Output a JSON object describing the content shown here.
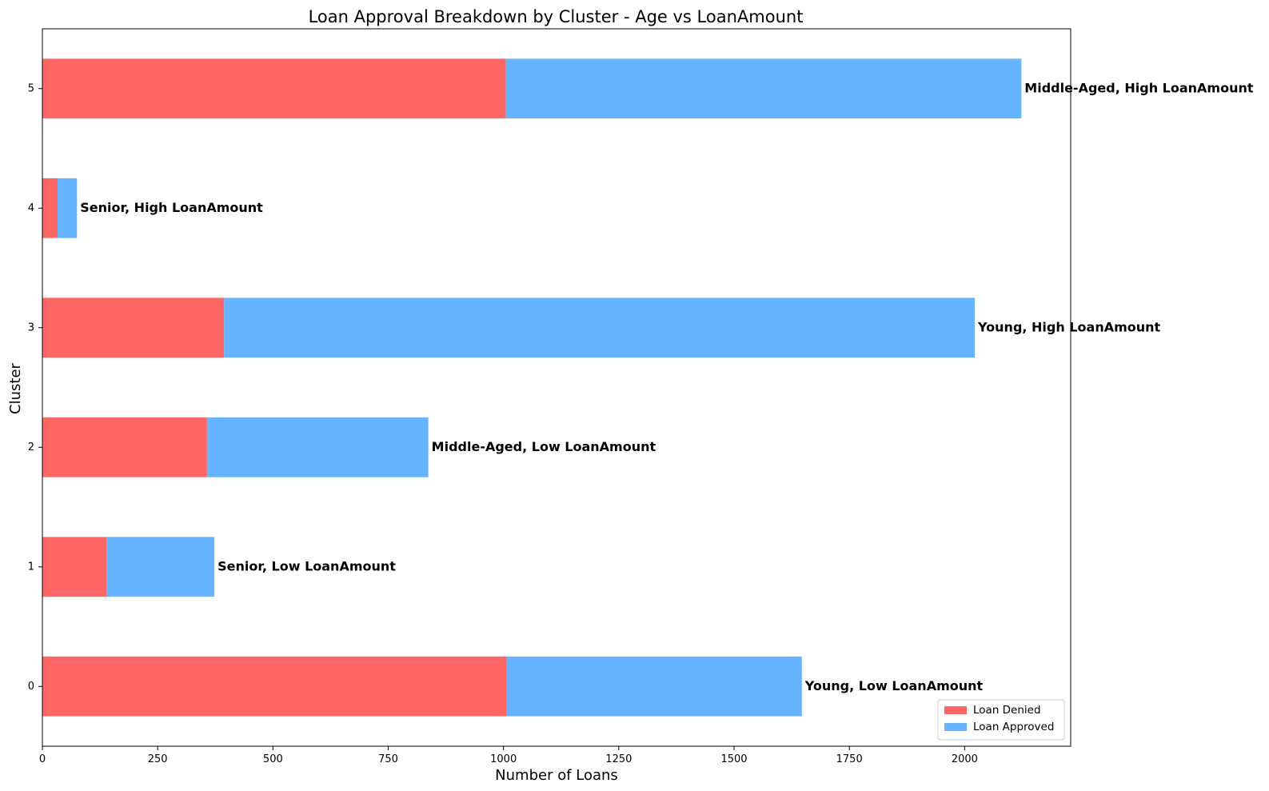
{
  "chart_data": {
    "type": "bar",
    "orientation": "horizontal",
    "stacked": true,
    "title": "Loan Approval Breakdown by Cluster - Age vs LoanAmount",
    "xlabel": "Number of Loans",
    "ylabel": "Cluster",
    "xlim": [
      0,
      2230
    ],
    "x_ticks": [
      "0",
      "250",
      "500",
      "750",
      "1000",
      "1250",
      "1500",
      "1750",
      "2000"
    ],
    "categories": [
      "0",
      "1",
      "2",
      "3",
      "4",
      "5"
    ],
    "series": [
      {
        "name": "Loan Denied",
        "color": "#ff6666",
        "values": [
          1007,
          140,
          357,
          394,
          33,
          1005
        ]
      },
      {
        "name": "Loan Approved",
        "color": "#66b3ff",
        "values": [
          640,
          233,
          480,
          1628,
          42,
          1118
        ]
      }
    ],
    "bar_labels": [
      "Young, Low LoanAmount",
      "Senior, Low LoanAmount",
      "Middle-Aged, Low LoanAmount",
      "Young, High LoanAmount",
      "Senior, High LoanAmount",
      "Middle-Aged, High LoanAmount"
    ],
    "legend_position": "lower-right",
    "grid": false
  }
}
